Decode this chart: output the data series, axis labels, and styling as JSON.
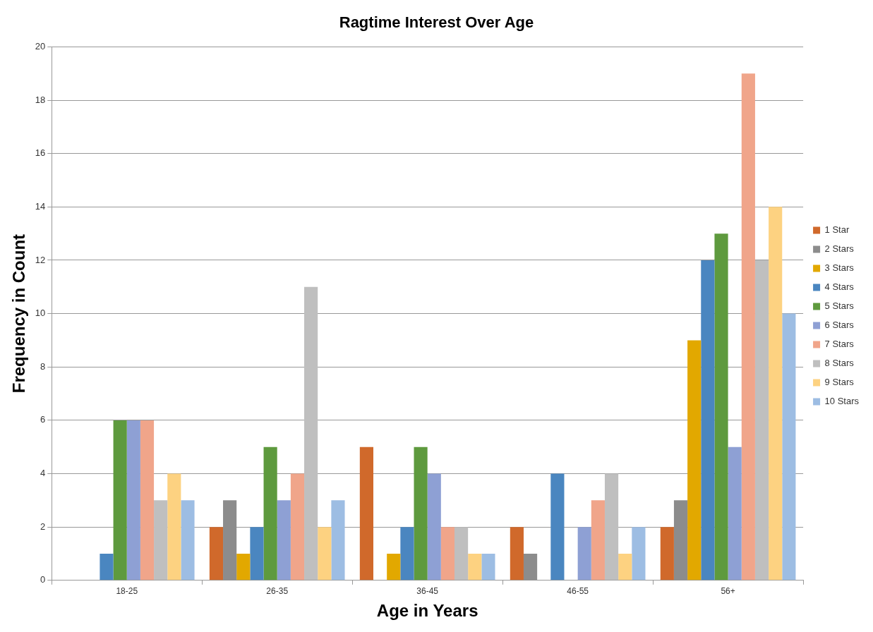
{
  "chart_data": {
    "type": "bar",
    "title": "Ragtime Interest Over Age",
    "xlabel": "Age in Years",
    "ylabel": "Frequency in Count",
    "categories": [
      "18-25",
      "26-35",
      "36-45",
      "46-55",
      "56+"
    ],
    "series": [
      {
        "name": "1 Star",
        "color": "#d0692b",
        "values": [
          0,
          2,
          5,
          2,
          2
        ]
      },
      {
        "name": "2 Stars",
        "color": "#8c8c8c",
        "values": [
          0,
          3,
          0,
          1,
          3
        ]
      },
      {
        "name": "3 Stars",
        "color": "#e2a800",
        "values": [
          0,
          1,
          1,
          0,
          9
        ]
      },
      {
        "name": "4 Stars",
        "color": "#4a86c0",
        "values": [
          1,
          2,
          2,
          4,
          12
        ]
      },
      {
        "name": "5 Stars",
        "color": "#5e9a3e",
        "values": [
          6,
          5,
          5,
          0,
          13
        ]
      },
      {
        "name": "6 Stars",
        "color": "#8ea0d4",
        "values": [
          6,
          3,
          4,
          2,
          5
        ]
      },
      {
        "name": "7 Stars",
        "color": "#f0a58a",
        "values": [
          6,
          4,
          2,
          3,
          19
        ]
      },
      {
        "name": "8 Stars",
        "color": "#bfbfbf",
        "values": [
          3,
          11,
          2,
          4,
          12
        ]
      },
      {
        "name": "9 Stars",
        "color": "#fdd281",
        "values": [
          4,
          2,
          1,
          1,
          14
        ]
      },
      {
        "name": "10 Stars",
        "color": "#9dbde3",
        "values": [
          3,
          3,
          1,
          2,
          10
        ]
      }
    ],
    "ylim": [
      0,
      20
    ],
    "yticks": [
      0,
      2,
      4,
      6,
      8,
      10,
      12,
      14,
      16,
      18,
      20
    ],
    "grid": "y",
    "legend": "right"
  }
}
